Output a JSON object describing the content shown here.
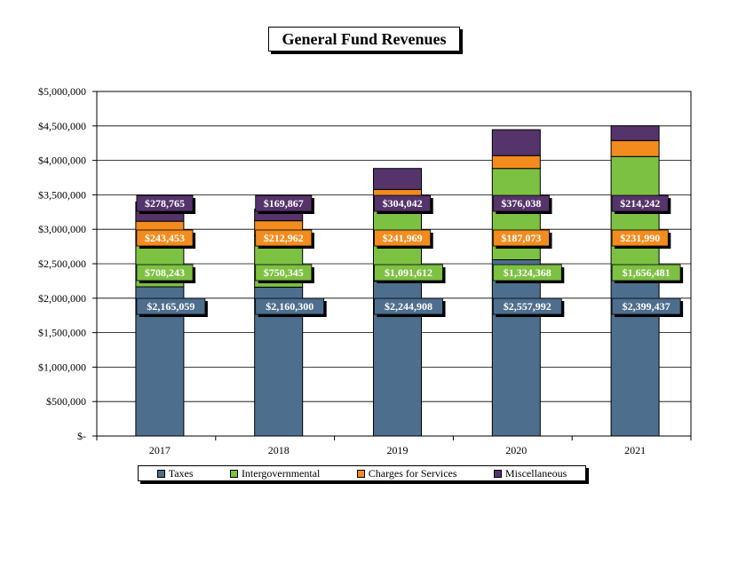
{
  "colors": {
    "taxes": "#4E6E8E",
    "intergovernmental": "#7DC142",
    "charges": "#F28C1F",
    "misc": "#55336B",
    "label_text": "#ffffff",
    "gridline": "#000000"
  },
  "chart_data": {
    "type": "bar",
    "stacked": true,
    "title": "General Fund Revenues",
    "xlabel": "",
    "ylabel": "",
    "categories": [
      "2017",
      "2018",
      "2019",
      "2020",
      "2021"
    ],
    "ylim": [
      0,
      5000000
    ],
    "yticks": [
      0,
      500000,
      1000000,
      1500000,
      2000000,
      2500000,
      3000000,
      3500000,
      4000000,
      4500000,
      5000000
    ],
    "ytick_labels": [
      "$-",
      "$500,000",
      "$1,000,000",
      "$1,500,000",
      "$2,000,000",
      "$2,500,000",
      "$3,000,000",
      "$3,500,000",
      "$4,000,000",
      "$4,500,000",
      "$5,000,000"
    ],
    "grid": true,
    "legend_position": "bottom",
    "series": [
      {
        "name": "Taxes",
        "color_key": "taxes",
        "values": [
          2165059,
          2160300,
          2244908,
          2557992,
          2399437
        ],
        "labels": [
          "$2,165,059",
          "$2,160,300",
          "$2,244,908",
          "$2,557,992",
          "$2,399,437"
        ]
      },
      {
        "name": "Intergovernmental",
        "color_key": "intergovernmental",
        "values": [
          708243,
          750345,
          1091612,
          1324368,
          1656481
        ],
        "labels": [
          "$708,243",
          "$750,345",
          "$1,091,612",
          "$1,324,368",
          "$1,656,481"
        ]
      },
      {
        "name": "Charges for Services",
        "color_key": "charges",
        "values": [
          243453,
          212962,
          241969,
          187073,
          231990
        ],
        "labels": [
          "$243,453",
          "$212,962",
          "$241,969",
          "$187,073",
          "$231,990"
        ]
      },
      {
        "name": "Miscellaneous",
        "color_key": "misc",
        "values": [
          278765,
          169867,
          304042,
          376038,
          214242
        ],
        "labels": [
          "$278,765",
          "$169,867",
          "$304,042",
          "$376,038",
          "$214,242"
        ]
      }
    ]
  }
}
